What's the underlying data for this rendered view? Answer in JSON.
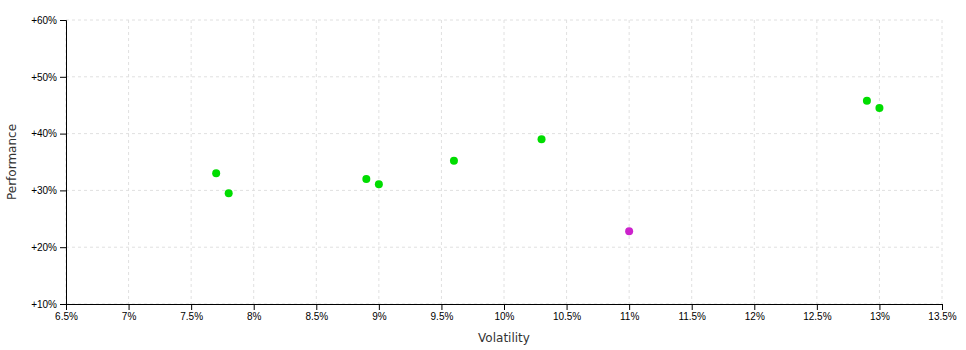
{
  "chart_data": {
    "type": "scatter",
    "xlabel": "Volatility",
    "ylabel": "Performance",
    "xlim": [
      0.065,
      0.135
    ],
    "ylim": [
      0.1,
      0.6
    ],
    "xticks": [
      {
        "value": 0.065,
        "label": "6.5%"
      },
      {
        "value": 0.07,
        "label": "7%"
      },
      {
        "value": 0.075,
        "label": "7.5%"
      },
      {
        "value": 0.08,
        "label": "8%"
      },
      {
        "value": 0.085,
        "label": "8.5%"
      },
      {
        "value": 0.09,
        "label": "9%"
      },
      {
        "value": 0.095,
        "label": "9.5%"
      },
      {
        "value": 0.1,
        "label": "10%"
      },
      {
        "value": 0.105,
        "label": "10.5%"
      },
      {
        "value": 0.11,
        "label": "11%"
      },
      {
        "value": 0.115,
        "label": "11.5%"
      },
      {
        "value": 0.12,
        "label": "12%"
      },
      {
        "value": 0.125,
        "label": "12.5%"
      },
      {
        "value": 0.13,
        "label": "13%"
      },
      {
        "value": 0.135,
        "label": "13.5%"
      }
    ],
    "yticks": [
      {
        "value": 0.1,
        "label": "+10%"
      },
      {
        "value": 0.2,
        "label": "+20%"
      },
      {
        "value": 0.3,
        "label": "+30%"
      },
      {
        "value": 0.4,
        "label": "+40%"
      },
      {
        "value": 0.5,
        "label": "+50%"
      },
      {
        "value": 0.6,
        "label": "+60%"
      }
    ],
    "grid": true,
    "series": [
      {
        "color": "#00dd00",
        "x": [
          0.077,
          0.078,
          0.089,
          0.09,
          0.096,
          0.103,
          0.129,
          0.13
        ],
        "values": [
          0.33,
          0.295,
          0.32,
          0.311,
          0.352,
          0.39,
          0.458,
          0.445
        ]
      },
      {
        "color": "#cc22cc",
        "x": [
          0.11
        ],
        "values": [
          0.228
        ]
      }
    ]
  }
}
